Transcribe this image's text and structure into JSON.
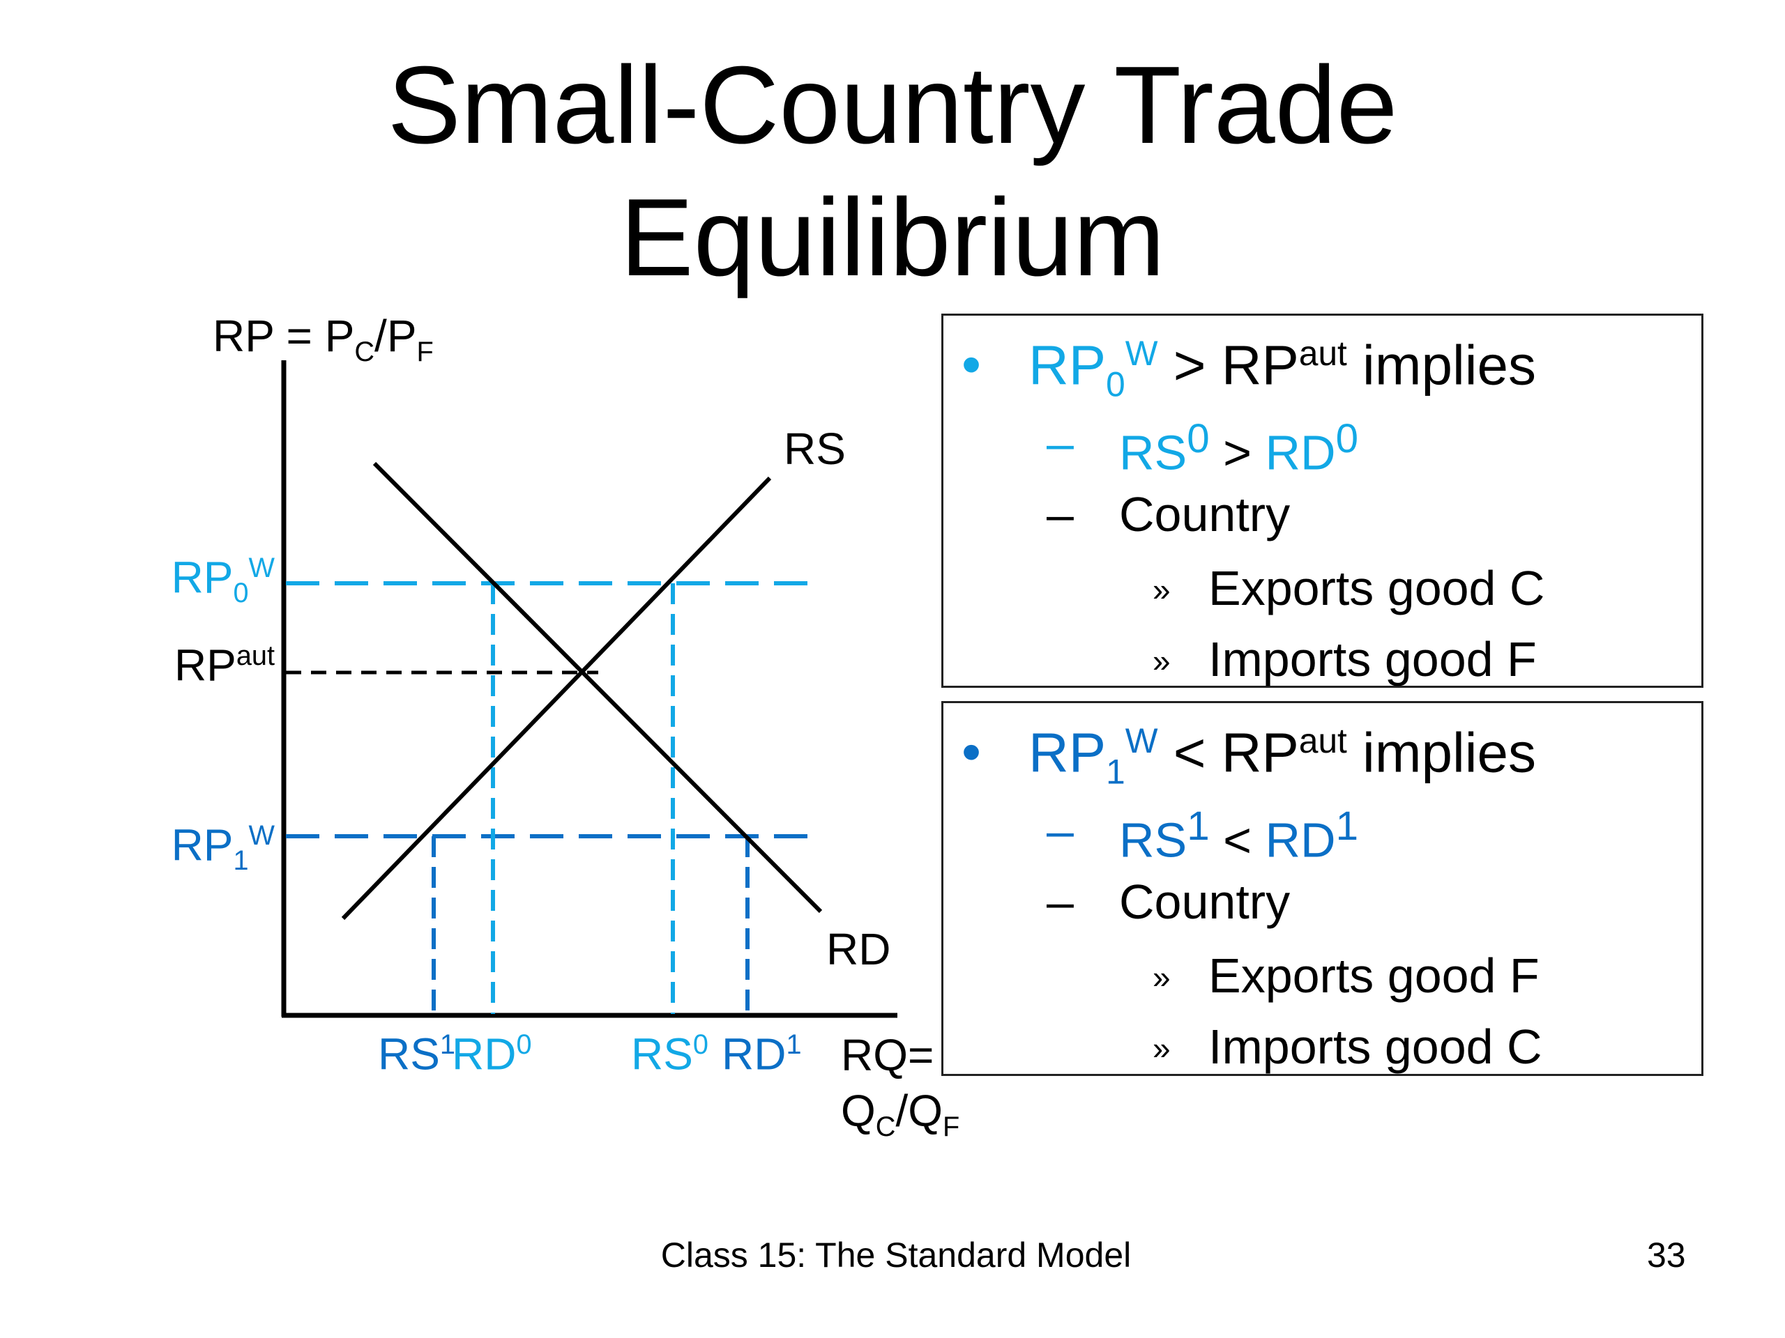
{
  "slide": {
    "title_line1": "Small-Country Trade",
    "title_line2": "Equilibrium",
    "footer": "Class 15:  The Standard Model",
    "page_number": "33"
  },
  "colors": {
    "world_price_0": "#12a8e6",
    "world_price_1": "#0b6fc6",
    "axis": "#000000"
  },
  "diagram": {
    "y_axis": {
      "a": "RP = P",
      "b": "C",
      "c": "/P",
      "d": "F"
    },
    "x_axis": {
      "line1": "RQ=",
      "a": "Q",
      "b": "C",
      "c": "/Q",
      "d": "F"
    },
    "rp0w": {
      "base": "RP",
      "sub": "0",
      "sup": "W"
    },
    "rpaut": {
      "base": "RP",
      "sup": "aut"
    },
    "rp1w": {
      "base": "RP",
      "sub": "1",
      "sup": "W"
    },
    "rs_curve": "RS",
    "rd_curve": "RD",
    "rs1": {
      "base": "RS",
      "sup": "1"
    },
    "rd0": {
      "base": "RD",
      "sup": "0"
    },
    "rs0": {
      "base": "RS",
      "sup": "0"
    },
    "rd1": {
      "base": "RD",
      "sup": "1"
    }
  },
  "box1": {
    "bullet": "•",
    "head": {
      "rp": "RP",
      "sub": "0",
      "sup": "W",
      "op": " > ",
      "rp2": "RP",
      "sup2": "aut",
      "tail": " implies"
    },
    "dash": "–",
    "cmp": {
      "a": "RS",
      "asup": "0",
      "op": " > ",
      "b": "RD",
      "bsup": "0"
    },
    "country": "Country",
    "sub_bullet": "»",
    "item1": "Exports good C",
    "item2": "Imports good F"
  },
  "box2": {
    "bullet": "•",
    "head": {
      "rp": "RP",
      "sub": "1",
      "sup": "W",
      "op": " < ",
      "rp2": "RP",
      "sup2": "aut",
      "tail": " implies"
    },
    "dash": "–",
    "cmp": {
      "a": "RS",
      "asup": "1",
      "op": " < ",
      "b": "RD",
      "bsup": "1"
    },
    "country": "Country",
    "sub_bullet": "»",
    "item1": "Exports good F",
    "item2": "Imports good C"
  }
}
